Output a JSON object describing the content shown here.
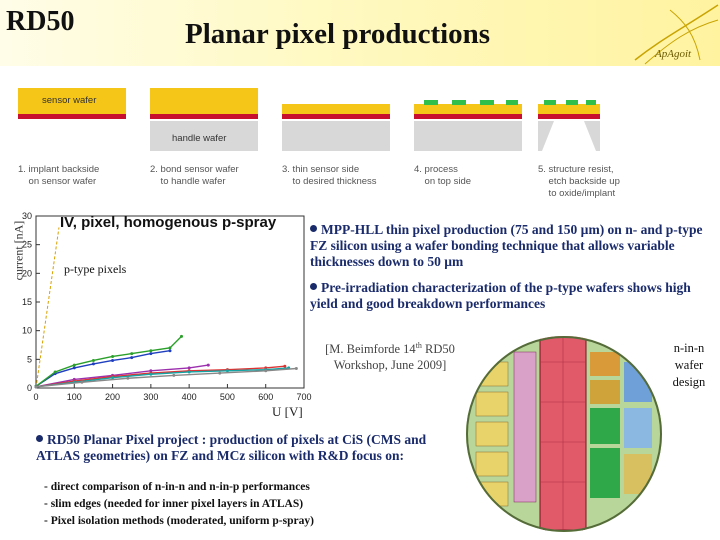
{
  "header": {
    "logo_text": "RD50",
    "title": "Planar pixel productions",
    "corner_logo_text": "ApAgoit"
  },
  "process_steps": [
    {
      "caption": "1. implant backside\n    on sensor wafer",
      "layer_labels": [
        "sensor wafer"
      ]
    },
    {
      "caption": "2. bond sensor wafer\n    to handle wafer",
      "layer_labels": [
        "handle wafer"
      ]
    },
    {
      "caption": "3. thin sensor side\n    to desired thickness",
      "layer_labels": []
    },
    {
      "caption": "4. process\n    on top side",
      "layer_labels": []
    },
    {
      "caption": "5. structure resist,\n    etch backside up\n    to oxide/implant",
      "layer_labels": []
    }
  ],
  "chart_data": {
    "type": "line",
    "title": "IV, pixel, homogenous p-spray",
    "xlabel": "U [V]",
    "ylabel": "current [nA]",
    "annotation": "p-type pixels",
    "xlim": [
      0,
      700
    ],
    "ylim": [
      0,
      30
    ],
    "xticks": [
      "0",
      "100",
      "200",
      "300",
      "400",
      "500",
      "600",
      "700"
    ],
    "yticks": [
      "0",
      "5",
      "10",
      "15",
      "20",
      "25",
      "30"
    ],
    "series": [
      {
        "color": "#1f3fbf",
        "x": [
          0,
          50,
          100,
          150,
          200,
          250,
          300,
          350
        ],
        "y": [
          0.3,
          2.5,
          3.5,
          4.2,
          4.8,
          5.3,
          6.0,
          6.5
        ]
      },
      {
        "color": "#2aa02a",
        "x": [
          0,
          50,
          100,
          150,
          200,
          250,
          300,
          350,
          380
        ],
        "y": [
          0.3,
          2.8,
          4.0,
          4.8,
          5.5,
          6.0,
          6.5,
          7.0,
          9.0
        ]
      },
      {
        "color": "#9b2fae",
        "x": [
          0,
          100,
          200,
          300,
          400,
          450
        ],
        "y": [
          0.2,
          1.5,
          2.2,
          3.0,
          3.5,
          4.0
        ]
      },
      {
        "color": "#d33",
        "x": [
          0,
          100,
          200,
          300,
          400,
          500,
          600,
          650
        ],
        "y": [
          0.2,
          1.2,
          2.0,
          2.6,
          3.0,
          3.2,
          3.5,
          3.8
        ]
      },
      {
        "color": "#15a4a4",
        "x": [
          0,
          100,
          200,
          300,
          400,
          500,
          600,
          660
        ],
        "y": [
          0.2,
          1.0,
          1.8,
          2.4,
          2.8,
          3.0,
          3.2,
          3.5
        ]
      },
      {
        "color": "#888",
        "x": [
          0,
          120,
          240,
          360,
          480,
          600,
          680
        ],
        "y": [
          0.2,
          1.0,
          1.7,
          2.2,
          2.6,
          3.0,
          3.4
        ]
      }
    ]
  },
  "bullets_top": [
    "MPP-HLL thin pixel production (75 and 150 µm) on n- and p-type FZ silicon using a wafer bonding technique that allows variable thicknesses down to 50 µm",
    "Pre-irradiation characterization of the p-type wafers shows high yield and good breakdown performances"
  ],
  "citation": {
    "line1a": "[M. Beimforde 14",
    "line1sup": "th",
    "line1b": " RD50",
    "line2": "Workshop, June 2009]"
  },
  "wafer_label": "n-in-n wafer design",
  "bullet_bottom": "RD50 Planar Pixel project : production of pixels at CiS (CMS and ATLAS geometries) on FZ and MCz silicon with R&D focus on:",
  "sub_items": [
    "- direct comparison of n-in-n and n-in-p performances",
    "- slim edges (needed for inner pixel layers in ATLAS)",
    "- Pixel isolation methods (moderated, uniform p-spray)"
  ],
  "colors": {
    "sensor": "#f5c518",
    "implant": "#c8102e",
    "handle": "#d8d8d8",
    "text_blue": "#1a2b6b",
    "pads": "#2fbf4a"
  }
}
